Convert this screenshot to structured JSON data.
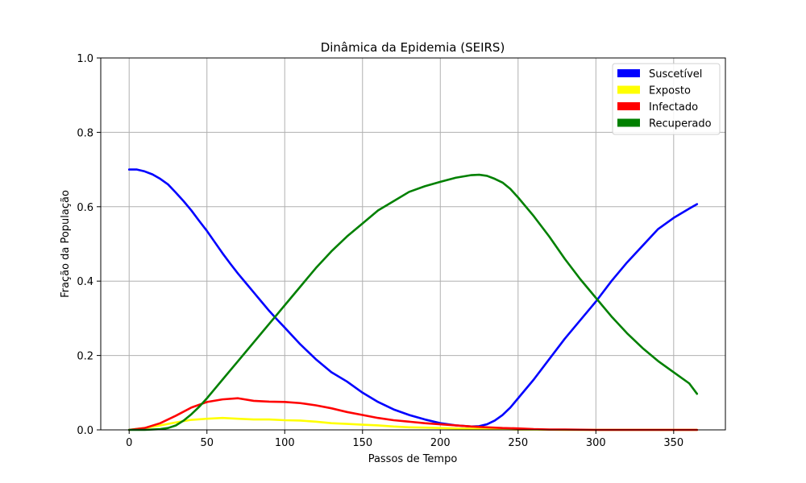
{
  "chart_data": {
    "type": "line",
    "title": "Dinâmica da Epidemia (SEIRS)",
    "xlabel": "Passos de Tempo",
    "ylabel": "Fração da População",
    "xlim": [
      -18.25,
      383.25
    ],
    "ylim": [
      0,
      1
    ],
    "xticks": [
      0,
      50,
      100,
      150,
      200,
      250,
      300,
      350
    ],
    "yticks": [
      0.0,
      0.2,
      0.4,
      0.6,
      0.8,
      1.0
    ],
    "xtick_labels": [
      "0",
      "50",
      "100",
      "150",
      "200",
      "250",
      "300",
      "350"
    ],
    "ytick_labels": [
      "0.0",
      "0.2",
      "0.4",
      "0.6",
      "0.8",
      "1.0"
    ],
    "grid": true,
    "legend_position": "top-right",
    "series": [
      {
        "name": "Suscetível",
        "color": "#0000ff",
        "x": [
          0,
          5,
          10,
          15,
          20,
          25,
          30,
          35,
          40,
          45,
          50,
          55,
          60,
          65,
          70,
          75,
          80,
          85,
          90,
          95,
          100,
          110,
          120,
          130,
          140,
          150,
          160,
          170,
          180,
          190,
          200,
          210,
          220,
          225,
          230,
          235,
          240,
          245,
          250,
          260,
          270,
          280,
          290,
          300,
          310,
          320,
          330,
          340,
          350,
          360,
          365
        ],
        "y": [
          0.7,
          0.7,
          0.695,
          0.687,
          0.675,
          0.66,
          0.638,
          0.615,
          0.59,
          0.562,
          0.535,
          0.505,
          0.475,
          0.447,
          0.42,
          0.395,
          0.37,
          0.345,
          0.32,
          0.297,
          0.275,
          0.23,
          0.19,
          0.155,
          0.13,
          0.1,
          0.075,
          0.055,
          0.04,
          0.028,
          0.018,
          0.012,
          0.009,
          0.01,
          0.015,
          0.025,
          0.04,
          0.06,
          0.085,
          0.135,
          0.19,
          0.245,
          0.295,
          0.345,
          0.4,
          0.45,
          0.495,
          0.54,
          0.57,
          0.595,
          0.607
        ]
      },
      {
        "name": "Exposto",
        "color": "#ffff00",
        "x": [
          0,
          10,
          20,
          30,
          40,
          50,
          60,
          70,
          80,
          90,
          100,
          110,
          120,
          130,
          140,
          150,
          160,
          170,
          180,
          190,
          200,
          210,
          220,
          230,
          240,
          250,
          260,
          280,
          300,
          320,
          340,
          365
        ],
        "y": [
          0.0,
          0.005,
          0.012,
          0.02,
          0.027,
          0.03,
          0.032,
          0.03,
          0.028,
          0.028,
          0.026,
          0.025,
          0.022,
          0.018,
          0.016,
          0.014,
          0.012,
          0.009,
          0.007,
          0.006,
          0.005,
          0.004,
          0.003,
          0.002,
          0.002,
          0.001,
          0.001,
          0.0,
          0.0,
          0.0,
          0.0,
          0.0
        ]
      },
      {
        "name": "Infectado",
        "color": "#ff0000",
        "x": [
          0,
          10,
          20,
          30,
          40,
          50,
          60,
          70,
          80,
          90,
          100,
          110,
          120,
          130,
          140,
          150,
          160,
          170,
          180,
          190,
          200,
          210,
          220,
          230,
          240,
          250,
          260,
          270,
          280,
          300,
          320,
          340,
          365
        ],
        "y": [
          0.0,
          0.005,
          0.018,
          0.038,
          0.06,
          0.075,
          0.082,
          0.085,
          0.078,
          0.076,
          0.075,
          0.072,
          0.066,
          0.058,
          0.048,
          0.04,
          0.032,
          0.026,
          0.022,
          0.018,
          0.015,
          0.012,
          0.009,
          0.007,
          0.005,
          0.004,
          0.002,
          0.001,
          0.001,
          0.0,
          0.0,
          0.0,
          0.0
        ]
      },
      {
        "name": "Recuperado",
        "color": "#008000",
        "x": [
          0,
          10,
          20,
          25,
          30,
          35,
          40,
          45,
          50,
          55,
          60,
          65,
          70,
          75,
          80,
          85,
          90,
          95,
          100,
          110,
          120,
          130,
          140,
          150,
          160,
          170,
          180,
          190,
          200,
          210,
          220,
          225,
          230,
          235,
          240,
          245,
          250,
          260,
          270,
          280,
          290,
          300,
          310,
          320,
          330,
          340,
          350,
          360,
          365
        ],
        "y": [
          0.0,
          0.0,
          0.002,
          0.005,
          0.012,
          0.025,
          0.042,
          0.062,
          0.085,
          0.11,
          0.135,
          0.16,
          0.185,
          0.21,
          0.235,
          0.26,
          0.285,
          0.31,
          0.335,
          0.385,
          0.435,
          0.48,
          0.52,
          0.555,
          0.59,
          0.615,
          0.64,
          0.655,
          0.667,
          0.678,
          0.685,
          0.686,
          0.683,
          0.675,
          0.665,
          0.648,
          0.625,
          0.575,
          0.52,
          0.46,
          0.405,
          0.355,
          0.305,
          0.26,
          0.22,
          0.185,
          0.155,
          0.125,
          0.097
        ]
      }
    ]
  }
}
